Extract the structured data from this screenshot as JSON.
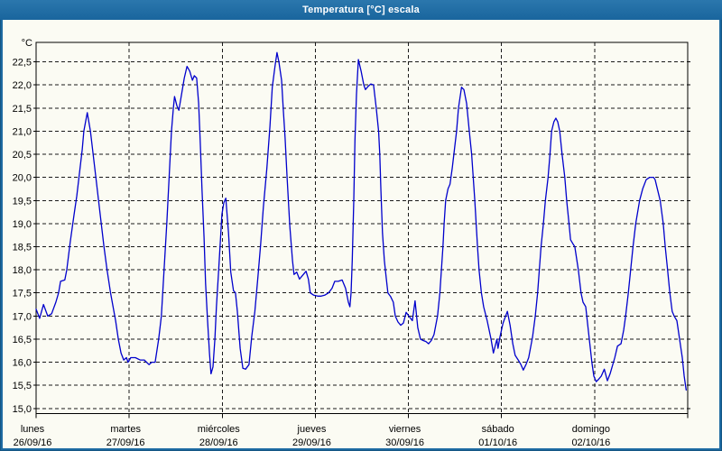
{
  "window": {
    "title": "Temperatura [°C] escala"
  },
  "colors": {
    "frame": "#1d6aa1",
    "frame_edge": "#155684",
    "titlebar_top": "#2b77ad",
    "titlebar_bottom": "#19659d",
    "title_text": "#ffffff",
    "background": "#fbfbf3",
    "plot_border": "#000000",
    "grid": "#1a1a1a",
    "text": "#000000",
    "line": "#0000cc"
  },
  "chart_data": {
    "type": "line",
    "title": "Temperatura [°C] escala",
    "y_unit_label": "°C",
    "ylim": [
      14.89,
      22.92
    ],
    "ytick_start": 15.0,
    "ytick_step": 0.5,
    "ytick_end": 22.5,
    "ytick_labels": [
      "15,0",
      "15,5",
      "16,0",
      "16,5",
      "17,0",
      "17,5",
      "18,0",
      "18,5",
      "19,0",
      "19,5",
      "20,0",
      "20,5",
      "21,0",
      "21,5",
      "22,0",
      "22,5"
    ],
    "grid": "dashed",
    "hours_total": 168,
    "hours_per_day": 24,
    "x_days": [
      {
        "name": "lunes",
        "date": "26/09/16"
      },
      {
        "name": "martes",
        "date": "27/09/16"
      },
      {
        "name": "miércoles",
        "date": "28/09/16"
      },
      {
        "name": "jueves",
        "date": "29/09/16"
      },
      {
        "name": "viernes",
        "date": "30/09/16"
      },
      {
        "name": "sábado",
        "date": "01/10/16"
      },
      {
        "name": "domingo",
        "date": "02/10/16"
      }
    ],
    "series": [
      {
        "name": "Temperatura",
        "color": "#0000cc",
        "points": [
          [
            0,
            17.15
          ],
          [
            0.9,
            16.95
          ],
          [
            1.9,
            17.25
          ],
          [
            3,
            17.0
          ],
          [
            4,
            17.05
          ],
          [
            5.1,
            17.3
          ],
          [
            5.8,
            17.5
          ],
          [
            6.3,
            17.75
          ],
          [
            7.4,
            17.78
          ],
          [
            7.9,
            18.0
          ],
          [
            8.8,
            18.6
          ],
          [
            9.8,
            19.2
          ],
          [
            10.5,
            19.6
          ],
          [
            11.2,
            20.1
          ],
          [
            11.9,
            20.6
          ],
          [
            12.3,
            21.0
          ],
          [
            13.2,
            21.4
          ],
          [
            14,
            21.0
          ],
          [
            15.4,
            20.0
          ],
          [
            16.8,
            19.0
          ],
          [
            17.5,
            18.5
          ],
          [
            18.3,
            18.0
          ],
          [
            19.2,
            17.5
          ],
          [
            20.5,
            16.9
          ],
          [
            21.2,
            16.5
          ],
          [
            21.9,
            16.2
          ],
          [
            22.6,
            16.05
          ],
          [
            23.3,
            16.1
          ],
          [
            23.7,
            16.0
          ],
          [
            24.4,
            16.1
          ],
          [
            25.6,
            16.1
          ],
          [
            26.8,
            16.05
          ],
          [
            27.9,
            16.05
          ],
          [
            29.1,
            15.95
          ],
          [
            29.8,
            16.0
          ],
          [
            30.7,
            16.0
          ],
          [
            31.6,
            16.5
          ],
          [
            32.3,
            17.0
          ],
          [
            33,
            18.0
          ],
          [
            33.7,
            19.0
          ],
          [
            34.3,
            20.0
          ],
          [
            34.9,
            21.0
          ],
          [
            35.4,
            21.5
          ],
          [
            35.7,
            21.75
          ],
          [
            36.3,
            21.55
          ],
          [
            36.8,
            21.45
          ],
          [
            37.5,
            21.8
          ],
          [
            38.2,
            22.15
          ],
          [
            38.9,
            22.4
          ],
          [
            39.6,
            22.3
          ],
          [
            40.3,
            22.1
          ],
          [
            40.8,
            22.2
          ],
          [
            41.4,
            22.15
          ],
          [
            41.9,
            21.6
          ],
          [
            42.3,
            20.8
          ],
          [
            42.8,
            19.7
          ],
          [
            43.3,
            18.7
          ],
          [
            43.7,
            17.7
          ],
          [
            44.2,
            16.9
          ],
          [
            44.7,
            16.2
          ],
          [
            45.1,
            15.75
          ],
          [
            45.6,
            15.9
          ],
          [
            46.1,
            16.5
          ],
          [
            46.5,
            17.2
          ],
          [
            47,
            17.9
          ],
          [
            47.5,
            18.6
          ],
          [
            47.9,
            19.2
          ],
          [
            48.4,
            19.45
          ],
          [
            48.9,
            19.55
          ],
          [
            49.6,
            18.8
          ],
          [
            50.2,
            17.95
          ],
          [
            50.9,
            17.55
          ],
          [
            51.4,
            17.5
          ],
          [
            51.9,
            17.1
          ],
          [
            52.6,
            16.3
          ],
          [
            53.3,
            15.87
          ],
          [
            54,
            15.85
          ],
          [
            54.9,
            15.95
          ],
          [
            55.6,
            16.55
          ],
          [
            56.4,
            17.1
          ],
          [
            57.2,
            17.85
          ],
          [
            57.9,
            18.55
          ],
          [
            58.6,
            19.35
          ],
          [
            59.5,
            20.2
          ],
          [
            60.3,
            21.1
          ],
          [
            60.9,
            21.95
          ],
          [
            61.6,
            22.4
          ],
          [
            62.1,
            22.7
          ],
          [
            62.6,
            22.5
          ],
          [
            63.3,
            22.1
          ],
          [
            63.7,
            21.5
          ],
          [
            64.2,
            20.85
          ],
          [
            64.7,
            20.0
          ],
          [
            65.4,
            18.95
          ],
          [
            66.1,
            18.2
          ],
          [
            66.5,
            17.9
          ],
          [
            67.2,
            17.95
          ],
          [
            67.9,
            17.8
          ],
          [
            68.9,
            17.9
          ],
          [
            69.6,
            17.97
          ],
          [
            70.2,
            17.8
          ],
          [
            70.7,
            17.5
          ],
          [
            71.6,
            17.45
          ],
          [
            72.6,
            17.43
          ],
          [
            73.5,
            17.43
          ],
          [
            74.4,
            17.45
          ],
          [
            75.4,
            17.5
          ],
          [
            76.3,
            17.6
          ],
          [
            77,
            17.75
          ],
          [
            77.9,
            17.75
          ],
          [
            78.9,
            17.78
          ],
          [
            79.8,
            17.6
          ],
          [
            80.5,
            17.3
          ],
          [
            80.9,
            17.2
          ],
          [
            81.2,
            17.5
          ],
          [
            81.5,
            18.2
          ],
          [
            81.9,
            19.5
          ],
          [
            82.2,
            20.8
          ],
          [
            82.6,
            21.8
          ],
          [
            83.1,
            22.55
          ],
          [
            83.8,
            22.3
          ],
          [
            84.5,
            22.0
          ],
          [
            84.9,
            21.9
          ],
          [
            85.6,
            21.97
          ],
          [
            86.3,
            22.02
          ],
          [
            87,
            22.0
          ],
          [
            87.7,
            21.5
          ],
          [
            88.3,
            21.0
          ],
          [
            88.6,
            20.5
          ],
          [
            88.9,
            19.7
          ],
          [
            89.3,
            18.8
          ],
          [
            89.8,
            18.2
          ],
          [
            90.3,
            17.8
          ],
          [
            90.7,
            17.5
          ],
          [
            91.4,
            17.42
          ],
          [
            92.1,
            17.3
          ],
          [
            92.6,
            17.0
          ],
          [
            93.3,
            16.87
          ],
          [
            94,
            16.8
          ],
          [
            94.7,
            16.85
          ],
          [
            95.4,
            17.08
          ],
          [
            96.1,
            17.0
          ],
          [
            97,
            16.9
          ],
          [
            97.7,
            17.33
          ],
          [
            98.4,
            16.75
          ],
          [
            99.1,
            16.5
          ],
          [
            99.8,
            16.47
          ],
          [
            100.5,
            16.45
          ],
          [
            101.2,
            16.4
          ],
          [
            101.9,
            16.47
          ],
          [
            102.6,
            16.6
          ],
          [
            103.5,
            17.0
          ],
          [
            104.1,
            17.5
          ],
          [
            104.9,
            18.5
          ],
          [
            105.2,
            19.0
          ],
          [
            105.6,
            19.5
          ],
          [
            106.2,
            19.75
          ],
          [
            106.7,
            19.85
          ],
          [
            107.3,
            20.2
          ],
          [
            107.7,
            20.5
          ],
          [
            108.4,
            21.0
          ],
          [
            108.9,
            21.5
          ],
          [
            109.7,
            21.95
          ],
          [
            110.3,
            21.9
          ],
          [
            111,
            21.6
          ],
          [
            111.7,
            21.0
          ],
          [
            112.3,
            20.5
          ],
          [
            113.1,
            19.5
          ],
          [
            113.8,
            18.5
          ],
          [
            114.2,
            18.0
          ],
          [
            114.8,
            17.5
          ],
          [
            115.4,
            17.2
          ],
          [
            116.3,
            16.9
          ],
          [
            117.3,
            16.5
          ],
          [
            117.9,
            16.2
          ],
          [
            118.8,
            16.5
          ],
          [
            119.1,
            16.3
          ],
          [
            119.6,
            16.55
          ],
          [
            120.4,
            16.85
          ],
          [
            121.5,
            17.1
          ],
          [
            122.2,
            16.8
          ],
          [
            122.9,
            16.4
          ],
          [
            123.5,
            16.15
          ],
          [
            124.3,
            16.05
          ],
          [
            125,
            15.95
          ],
          [
            125.6,
            15.83
          ],
          [
            126.3,
            15.95
          ],
          [
            127,
            16.1
          ],
          [
            128,
            16.55
          ],
          [
            128.7,
            17.0
          ],
          [
            129.3,
            17.5
          ],
          [
            130.2,
            18.5
          ],
          [
            130.8,
            19.0
          ],
          [
            131.3,
            19.5
          ],
          [
            132,
            20.0
          ],
          [
            132.5,
            20.5
          ],
          [
            132.9,
            21.0
          ],
          [
            133.5,
            21.2
          ],
          [
            134,
            21.28
          ],
          [
            134.5,
            21.2
          ],
          [
            135,
            21.0
          ],
          [
            135.6,
            20.5
          ],
          [
            136.3,
            20.0
          ],
          [
            136.8,
            19.5
          ],
          [
            137.4,
            19.0
          ],
          [
            137.8,
            18.65
          ],
          [
            138.5,
            18.55
          ],
          [
            138.9,
            18.5
          ],
          [
            139.8,
            18.0
          ],
          [
            140.5,
            17.5
          ],
          [
            141,
            17.3
          ],
          [
            141.7,
            17.2
          ],
          [
            142.5,
            16.6
          ],
          [
            143.3,
            16.0
          ],
          [
            143.8,
            15.7
          ],
          [
            144.4,
            15.58
          ],
          [
            145,
            15.63
          ],
          [
            145.7,
            15.7
          ],
          [
            146.5,
            15.85
          ],
          [
            147.3,
            15.6
          ],
          [
            148,
            15.75
          ],
          [
            149.2,
            16.1
          ],
          [
            149.9,
            16.35
          ],
          [
            150.8,
            16.4
          ],
          [
            151.5,
            16.7
          ],
          [
            152,
            17.0
          ],
          [
            152.7,
            17.5
          ],
          [
            153.3,
            18.0
          ],
          [
            153.9,
            18.5
          ],
          [
            154.6,
            19.0
          ],
          [
            155.6,
            19.5
          ],
          [
            156.4,
            19.75
          ],
          [
            157.3,
            19.95
          ],
          [
            158.2,
            20.0
          ],
          [
            159.2,
            20.0
          ],
          [
            159.6,
            19.95
          ],
          [
            160.9,
            19.5
          ],
          [
            161.7,
            19.0
          ],
          [
            162.2,
            18.5
          ],
          [
            162.8,
            18.0
          ],
          [
            163.4,
            17.5
          ],
          [
            164,
            17.1
          ],
          [
            164.5,
            17.0
          ],
          [
            165.2,
            16.9
          ],
          [
            165.9,
            16.5
          ],
          [
            166.6,
            16.1
          ],
          [
            167.1,
            15.7
          ],
          [
            167.6,
            15.4
          ]
        ]
      }
    ]
  }
}
